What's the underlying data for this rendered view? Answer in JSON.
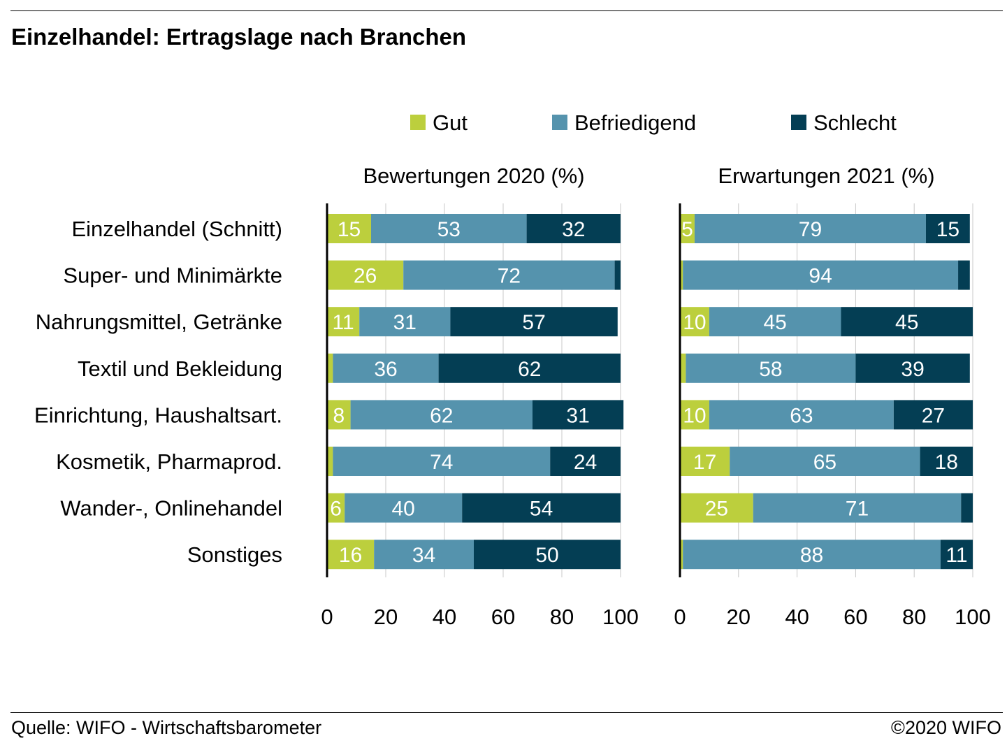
{
  "title": "Einzelhandel: Ertragslage nach Branchen",
  "footer": {
    "source": "Quelle: WIFO - Wirtschaftsbarometer",
    "copyright": "©2020 WIFO"
  },
  "chart_data": {
    "type": "bar",
    "orientation": "horizontal",
    "stacked": true,
    "legend_position": "top",
    "colors": {
      "Gut": "#bccf3d",
      "Befriedigend": "#5593ad",
      "Schlecht": "#043e54"
    },
    "categories": [
      "Einzelhandel (Schnitt)",
      "Super- und Minimärkte",
      "Nahrungsmittel, Getränke",
      "Textil und Bekleidung",
      "Einrichtung, Haushaltsart.",
      "Kosmetik, Pharmaprod.",
      "Wander-, Onlinehandel",
      "Sonstiges"
    ],
    "panels": [
      {
        "title": "Bewertungen 2020 (%)",
        "xlim": [
          0,
          100
        ],
        "xticks": [
          0,
          20,
          40,
          60,
          80,
          100
        ],
        "series": [
          {
            "name": "Gut",
            "values": [
              15,
              26,
              11,
              2,
              8,
              2,
              6,
              16
            ],
            "labels": [
              "15",
              "26",
              "11",
              "",
              "8",
              "",
              "6",
              "16"
            ]
          },
          {
            "name": "Befriedigend",
            "values": [
              53,
              72,
              31,
              36,
              62,
              74,
              40,
              34
            ],
            "labels": [
              "53",
              "72",
              "31",
              "36",
              "62",
              "74",
              "40",
              "34"
            ]
          },
          {
            "name": "Schlecht",
            "values": [
              32,
              2,
              57,
              62,
              31,
              24,
              54,
              50
            ],
            "labels": [
              "32",
              "",
              "57",
              "62",
              "31",
              "24",
              "54",
              "50"
            ]
          }
        ]
      },
      {
        "title": "Erwartungen 2021 (%)",
        "xlim": [
          0,
          100
        ],
        "xticks": [
          0,
          20,
          40,
          60,
          80,
          100
        ],
        "series": [
          {
            "name": "Gut",
            "values": [
              5,
              1,
              10,
              2,
              10,
              17,
              25,
              1
            ],
            "labels": [
              "5",
              "",
              "10",
              "",
              "10",
              "17",
              "25",
              ""
            ]
          },
          {
            "name": "Befriedigend",
            "values": [
              79,
              94,
              45,
              58,
              63,
              65,
              71,
              88
            ],
            "labels": [
              "79",
              "94",
              "45",
              "58",
              "63",
              "65",
              "71",
              "88"
            ]
          },
          {
            "name": "Schlecht",
            "values": [
              15,
              4,
              45,
              39,
              27,
              18,
              4,
              11
            ],
            "labels": [
              "15",
              "",
              "45",
              "39",
              "27",
              "18",
              "",
              "11"
            ]
          }
        ]
      }
    ]
  }
}
